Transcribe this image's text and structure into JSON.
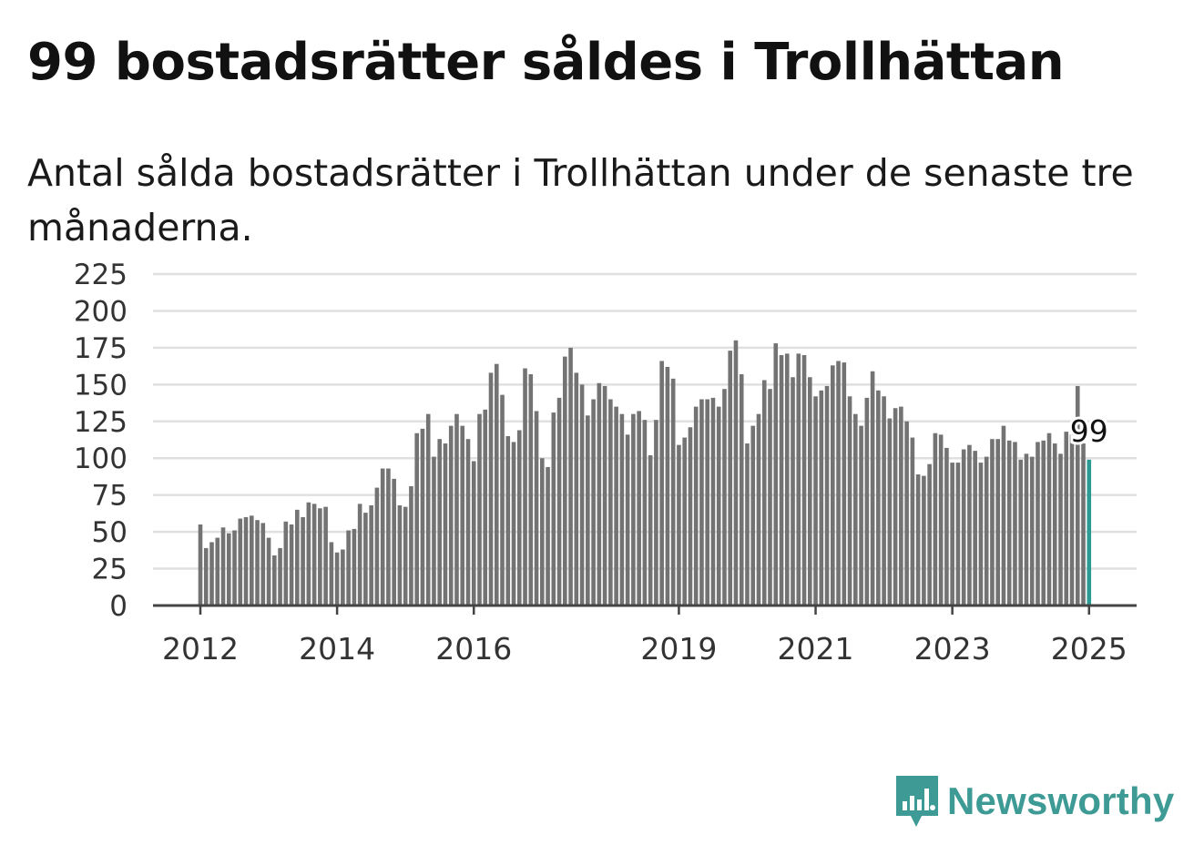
{
  "title": "99 bostadsrätter såldes i Trollhättan",
  "subtitle": "Antal sålda bostadsrätter i Trollhättan under de senaste tre månaderna.",
  "brand": {
    "name": "Newsworthy",
    "icon": "newsworthy-logo-icon",
    "color": "#3d9a94"
  },
  "colors": {
    "bar": "#737373",
    "highlight": "#2a9a93",
    "grid": "#e0e0e0",
    "axis": "#444444"
  },
  "chart_data": {
    "type": "bar",
    "title": "99 bostadsrätter såldes i Trollhättan",
    "subtitle": "Antal sålda bostadsrätter i Trollhättan under de senaste tre månaderna.",
    "ylim": [
      0,
      225
    ],
    "y_ticks": [
      "0",
      "25",
      "50",
      "75",
      "100",
      "125",
      "150",
      "175",
      "200",
      "225"
    ],
    "x_ticks": [
      {
        "label": "2012",
        "index": 0
      },
      {
        "label": "2014",
        "index": 24
      },
      {
        "label": "2016",
        "index": 48
      },
      {
        "label": "2019",
        "index": 84
      },
      {
        "label": "2021",
        "index": 108
      },
      {
        "label": "2023",
        "index": 132
      },
      {
        "label": "2025",
        "index": 156
      }
    ],
    "grid": true,
    "highlight": {
      "index": 156,
      "value": 99,
      "label": "99"
    },
    "values": [
      55,
      39,
      43,
      46,
      53,
      49,
      51,
      59,
      60,
      61,
      58,
      56,
      46,
      34,
      39,
      57,
      55,
      65,
      60,
      70,
      69,
      66,
      67,
      43,
      36,
      38,
      51,
      52,
      69,
      63,
      68,
      80,
      93,
      93,
      86,
      68,
      67,
      81,
      117,
      120,
      130,
      101,
      113,
      110,
      122,
      130,
      122,
      113,
      98,
      130,
      133,
      158,
      164,
      143,
      115,
      111,
      119,
      161,
      157,
      132,
      100,
      94,
      131,
      141,
      169,
      175,
      158,
      150,
      129,
      140,
      151,
      149,
      140,
      135,
      130,
      116,
      130,
      132,
      126,
      102,
      126,
      166,
      162,
      154,
      109,
      114,
      121,
      135,
      140,
      140,
      141,
      135,
      147,
      173,
      180,
      157,
      110,
      122,
      130,
      153,
      147,
      178,
      170,
      171,
      155,
      171,
      170,
      155,
      142,
      146,
      149,
      163,
      166,
      165,
      142,
      130,
      122,
      141,
      159,
      146,
      142,
      127,
      134,
      135,
      125,
      114,
      89,
      88,
      96,
      117,
      116,
      107,
      97,
      97,
      106,
      109,
      105,
      97,
      101,
      113,
      113,
      122,
      112,
      111,
      99,
      103,
      101,
      111,
      112,
      117,
      110,
      103,
      118,
      116,
      149,
      110,
      99
    ]
  }
}
